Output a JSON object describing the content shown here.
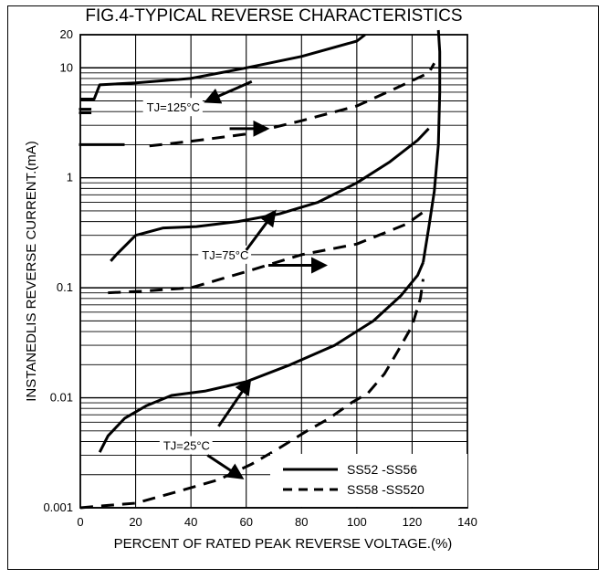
{
  "chart_data": {
    "type": "line",
    "title": "FIG.4-TYPICAL REVERSE CHARACTERISTICS",
    "xlabel": "PERCENT OF RATED PEAK REVERSE VOLTAGE.(%)",
    "ylabel": "INSTANEDLIS REVERSE CURRENT.(mA)",
    "xlim": [
      0,
      140
    ],
    "ylim": [
      0.001,
      20
    ],
    "yscale": "log",
    "grid": true,
    "x_ticks": [
      0,
      20,
      40,
      60,
      80,
      100,
      120,
      140
    ],
    "x_tick_labels": [
      "0",
      "20",
      "40",
      "60",
      "80",
      "100",
      "120",
      "140"
    ],
    "y_ticks": [
      0.001,
      0.01,
      0.1,
      1,
      10,
      20
    ],
    "y_tick_labels": [
      "0.001",
      "0.01",
      "0.1",
      "1",
      "10",
      "20"
    ],
    "legend_position": "bottom-right",
    "legend": [
      {
        "label": "SS52  -SS56",
        "style": "solid"
      },
      {
        "label": "SS58 -SS520",
        "style": "dashed"
      }
    ],
    "annotations": [
      {
        "text": "TJ=125°C",
        "x": 24,
        "y": 4.4
      },
      {
        "text": "TJ=75°C",
        "x": 44,
        "y": 0.2
      },
      {
        "text": "TJ=25°C",
        "x": 30,
        "y": 0.0037
      }
    ],
    "arrows": [
      {
        "from": [
          62,
          7.5
        ],
        "to": [
          46,
          5
        ]
      },
      {
        "from": [
          54,
          2.8
        ],
        "to": [
          67,
          2.8
        ]
      },
      {
        "from": [
          60,
          0.22
        ],
        "to": [
          70,
          0.48
        ]
      },
      {
        "from": [
          68,
          0.16
        ],
        "to": [
          88,
          0.16
        ]
      },
      {
        "from": [
          50,
          0.0055
        ],
        "to": [
          61,
          0.014
        ]
      },
      {
        "from": [
          46,
          0.003
        ],
        "to": [
          58,
          0.0019
        ]
      }
    ],
    "series": [
      {
        "group": "SS52 -SS56",
        "temperature": "TJ=125°C",
        "style": "solid",
        "x": [
          0,
          5,
          7,
          20,
          40,
          60,
          80,
          100,
          103
        ],
        "y": [
          5.2,
          5.2,
          7,
          7.3,
          8,
          10,
          12.7,
          17.5,
          20
        ]
      },
      {
        "group": "SS58 -SS520",
        "temperature": "TJ=125°C",
        "style": "dashed",
        "x": [
          25,
          40,
          60,
          80,
          100,
          114,
          126,
          128
        ],
        "y": [
          1.95,
          2.15,
          2.5,
          3.3,
          4.5,
          6.5,
          9,
          11
        ]
      },
      {
        "group": "SS52 -SS56",
        "temperature": "TJ=75°C",
        "style": "solid",
        "x": [
          11,
          13,
          20,
          30,
          42,
          57,
          72,
          86,
          100,
          112,
          122,
          126
        ],
        "y": [
          0.175,
          0.2,
          0.3,
          0.35,
          0.36,
          0.4,
          0.47,
          0.6,
          0.9,
          1.4,
          2.2,
          2.8
        ]
      },
      {
        "group": "SS58 -SS520",
        "temperature": "TJ=75°C",
        "style": "dashed",
        "x": [
          10,
          22,
          40,
          60,
          80,
          100,
          118,
          126
        ],
        "y": [
          0.09,
          0.093,
          0.1,
          0.14,
          0.2,
          0.25,
          0.38,
          0.53
        ]
      },
      {
        "group": "SS52 -SS56",
        "temperature": "TJ=25°C",
        "style": "solid",
        "x": [
          7,
          10,
          16,
          24,
          33,
          45,
          60,
          76,
          92,
          106,
          116,
          122,
          124
        ],
        "y": [
          0.0032,
          0.0045,
          0.0065,
          0.0085,
          0.0105,
          0.0115,
          0.014,
          0.02,
          0.03,
          0.05,
          0.085,
          0.13,
          0.17
        ]
      },
      {
        "group": "SS58 -SS520",
        "temperature": "TJ=25°C",
        "style": "dashed",
        "x": [
          0,
          10,
          20,
          35,
          50,
          62,
          72,
          82,
          90,
          98,
          104,
          110,
          115,
          120,
          123,
          124
        ],
        "y": [
          0.001,
          0.00105,
          0.0011,
          0.0014,
          0.0018,
          0.0025,
          0.0035,
          0.005,
          0.0065,
          0.009,
          0.011,
          0.0165,
          0.027,
          0.045,
          0.08,
          0.12
        ]
      },
      {
        "group": "SS52 -SS56",
        "temperature": "all",
        "style": "solid",
        "x": [
          124,
          126,
          128,
          129.5,
          130,
          130,
          129.5
        ],
        "y": [
          0.17,
          0.35,
          0.75,
          2,
          6,
          14,
          22
        ]
      }
    ],
    "side_markers": [
      {
        "style": "solid",
        "x": [
          -0.5,
          4
        ],
        "y": [
          4.2,
          4.2
        ]
      },
      {
        "style": "solid",
        "x": [
          -0.5,
          4
        ],
        "y": [
          3.9,
          3.9
        ]
      },
      {
        "style": "solid",
        "x": [
          -0.5,
          16
        ],
        "y": [
          2,
          2
        ]
      }
    ]
  }
}
